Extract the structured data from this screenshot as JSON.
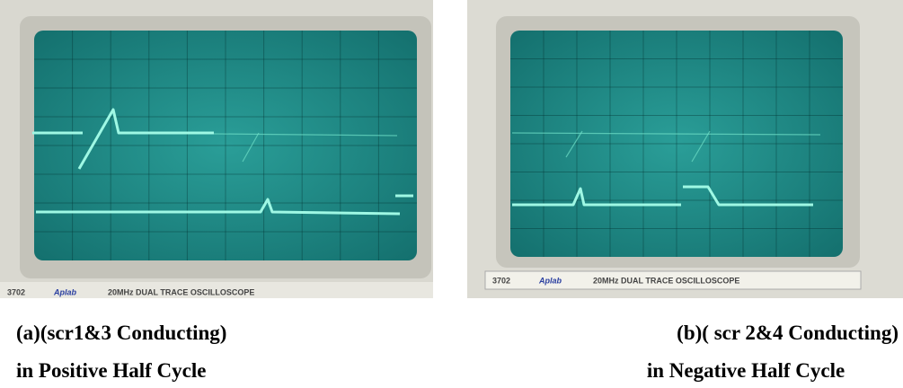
{
  "panels": [
    {
      "model": "3702",
      "brand": "Aplab",
      "description": "20MHz DUAL TRACE OSCILLOSCOPE",
      "caption": [
        "(a)(scr1&3 Conducting)",
        "in Positive Half Cycle"
      ]
    },
    {
      "model": "3702",
      "brand": "Aplab",
      "description": "20MHz DUAL TRACE OSCILLOSCOPE",
      "caption": [
        "(b)( scr 2&4 Conducting)",
        "in Negative Half Cycle"
      ]
    }
  ]
}
